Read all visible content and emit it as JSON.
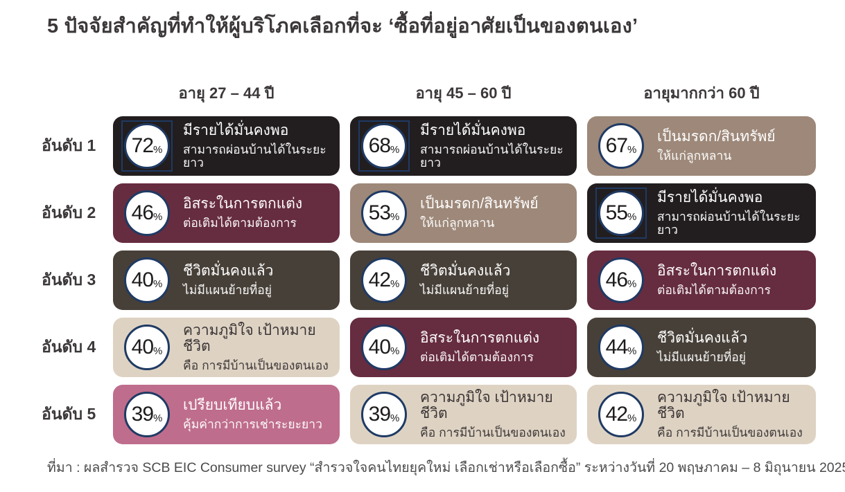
{
  "title": "5 ปัจจัยสำคัญที่ทำให้ผู้บริโภคเลือกที่จะ ‘ซื้อที่อยู่อาศัยเป็นของตนเอง’",
  "columns": [
    "อายุ 27 – 44 ปี",
    "อายุ 45 – 60 ปี",
    "อายุมากกว่า 60 ปี"
  ],
  "row_labels": [
    "อันดับ 1",
    "อันดับ 2",
    "อันดับ 3",
    "อันดับ 4",
    "อันดับ 5"
  ],
  "percent_sign": "%",
  "footer": "ที่มา : ผลสำรวจ SCB EIC Consumer survey “สำรวจใจคนไทยยุคใหม่ เลือกเช่าหรือเลือกซื้อ” ระหว่างวันที่ 20 พฤษภาคม – 8 มิถุนายน 2025",
  "colors": {
    "ink": "#3c3839",
    "circle_border": "#1f3a64",
    "circle_fill": "#ffffff",
    "circle_text": "#1e1b1c",
    "themes": {
      "income": {
        "bg": "#221e1f",
        "text": "#ffffff"
      },
      "legacy": {
        "bg": "#9d8879",
        "text": "#ffffff"
      },
      "freedom": {
        "bg": "#662c3f",
        "text": "#ffffff"
      },
      "stable": {
        "bg": "#474038",
        "text": "#ffffff"
      },
      "pride": {
        "bg": "#ded3c3",
        "text": "#393334"
      },
      "compare": {
        "bg": "#bf6d8c",
        "text": "#ffffff"
      }
    }
  },
  "cells": [
    [
      {
        "pct": "72",
        "theme": "income",
        "boxed": true,
        "line1": "มีรายได้มั่นคงพอ",
        "line2": "สามารถผ่อนบ้านได้ในระยะยาว"
      },
      {
        "pct": "68",
        "theme": "income",
        "boxed": true,
        "line1": "มีรายได้มั่นคงพอ",
        "line2": "สามารถผ่อนบ้านได้ในระยะยาว"
      },
      {
        "pct": "67",
        "theme": "legacy",
        "boxed": false,
        "line1": "เป็นมรดก/สินทรัพย์",
        "line2": "ให้แก่ลูกหลาน"
      }
    ],
    [
      {
        "pct": "46",
        "theme": "freedom",
        "boxed": false,
        "line1": "อิสระในการตกแต่ง",
        "line2": "ต่อเติมได้ตามต้องการ"
      },
      {
        "pct": "53",
        "theme": "legacy",
        "boxed": false,
        "line1": "เป็นมรดก/สินทรัพย์",
        "line2": "ให้แก่ลูกหลาน"
      },
      {
        "pct": "55",
        "theme": "income",
        "boxed": true,
        "line1": "มีรายได้มั่นคงพอ",
        "line2": "สามารถผ่อนบ้านได้ในระยะยาว"
      }
    ],
    [
      {
        "pct": "40",
        "theme": "stable",
        "boxed": false,
        "line1": "ชีวิตมั่นคงแล้ว",
        "line2": "ไม่มีแผนย้ายที่อยู่"
      },
      {
        "pct": "42",
        "theme": "stable",
        "boxed": false,
        "line1": "ชีวิตมั่นคงแล้ว",
        "line2": "ไม่มีแผนย้ายที่อยู่"
      },
      {
        "pct": "46",
        "theme": "freedom",
        "boxed": false,
        "line1": "อิสระในการตกแต่ง",
        "line2": "ต่อเติมได้ตามต้องการ"
      }
    ],
    [
      {
        "pct": "40",
        "theme": "pride",
        "boxed": false,
        "line1": "ความภูมิใจ เป้าหมายชีวิต",
        "line2": "คือ การมีบ้านเป็นของตนเอง"
      },
      {
        "pct": "40",
        "theme": "freedom",
        "boxed": false,
        "line1": "อิสระในการตกแต่ง",
        "line2": "ต่อเติมได้ตามต้องการ"
      },
      {
        "pct": "44",
        "theme": "stable",
        "boxed": false,
        "line1": "ชีวิตมั่นคงแล้ว",
        "line2": "ไม่มีแผนย้ายที่อยู่"
      }
    ],
    [
      {
        "pct": "39",
        "theme": "compare",
        "boxed": false,
        "line1": "เปรียบเทียบแล้ว",
        "line2": "คุ้มค่ากว่าการเช่าระยะยาว"
      },
      {
        "pct": "39",
        "theme": "pride",
        "boxed": false,
        "line1": "ความภูมิใจ เป้าหมายชีวิต",
        "line2": "คือ การมีบ้านเป็นของตนเอง"
      },
      {
        "pct": "42",
        "theme": "pride",
        "boxed": false,
        "line1": "ความภูมิใจ เป้าหมายชีวิต",
        "line2": "คือ การมีบ้านเป็นของตนเอง"
      }
    ]
  ],
  "chart_data": {
    "type": "table",
    "title": "5 ปัจจัยสำคัญที่ทำให้ผู้บริโภคเลือกที่จะ ‘ซื้อที่อยู่อาศัยเป็นของตนเอง’",
    "columns": [
      "อายุ 27 – 44 ปี",
      "อายุ 45 – 60 ปี",
      "อายุมากกว่า 60 ปี"
    ],
    "rows": [
      "อันดับ 1",
      "อันดับ 2",
      "อันดับ 3",
      "อันดับ 4",
      "อันดับ 5"
    ],
    "series": [
      {
        "name": "อายุ 27 – 44 ปี",
        "values": [
          72,
          46,
          40,
          40,
          39
        ],
        "labels": [
          "มีรายได้มั่นคงพอ สามารถผ่อนบ้านได้ในระยะยาว",
          "อิสระในการตกแต่ง ต่อเติมได้ตามต้องการ",
          "ชีวิตมั่นคงแล้ว ไม่มีแผนย้ายที่อยู่",
          "ความภูมิใจ เป้าหมายชีวิต คือ การมีบ้านเป็นของตนเอง",
          "เปรียบเทียบแล้ว คุ้มค่ากว่าการเช่าระยะยาว"
        ]
      },
      {
        "name": "อายุ 45 – 60 ปี",
        "values": [
          68,
          53,
          42,
          40,
          39
        ],
        "labels": [
          "มีรายได้มั่นคงพอ สามารถผ่อนบ้านได้ในระยะยาว",
          "เป็นมรดก/สินทรัพย์ ให้แก่ลูกหลาน",
          "ชีวิตมั่นคงแล้ว ไม่มีแผนย้ายที่อยู่",
          "อิสระในการตกแต่ง ต่อเติมได้ตามต้องการ",
          "ความภูมิใจ เป้าหมายชีวิต คือ การมีบ้านเป็นของตนเอง"
        ]
      },
      {
        "name": "อายุมากกว่า 60 ปี",
        "values": [
          67,
          55,
          46,
          44,
          42
        ],
        "labels": [
          "เป็นมรดก/สินทรัพย์ ให้แก่ลูกหลาน",
          "มีรายได้มั่นคงพอ สามารถผ่อนบ้านได้ในระยะยาว",
          "อิสระในการตกแต่ง ต่อเติมได้ตามต้องการ",
          "ชีวิตมั่นคงแล้ว ไม่มีแผนย้ายที่อยู่",
          "ความภูมิใจ เป้าหมายชีวิต คือ การมีบ้านเป็นของตนเอง"
        ]
      }
    ],
    "value_unit": "%",
    "legend_position": "none",
    "grid": false
  }
}
